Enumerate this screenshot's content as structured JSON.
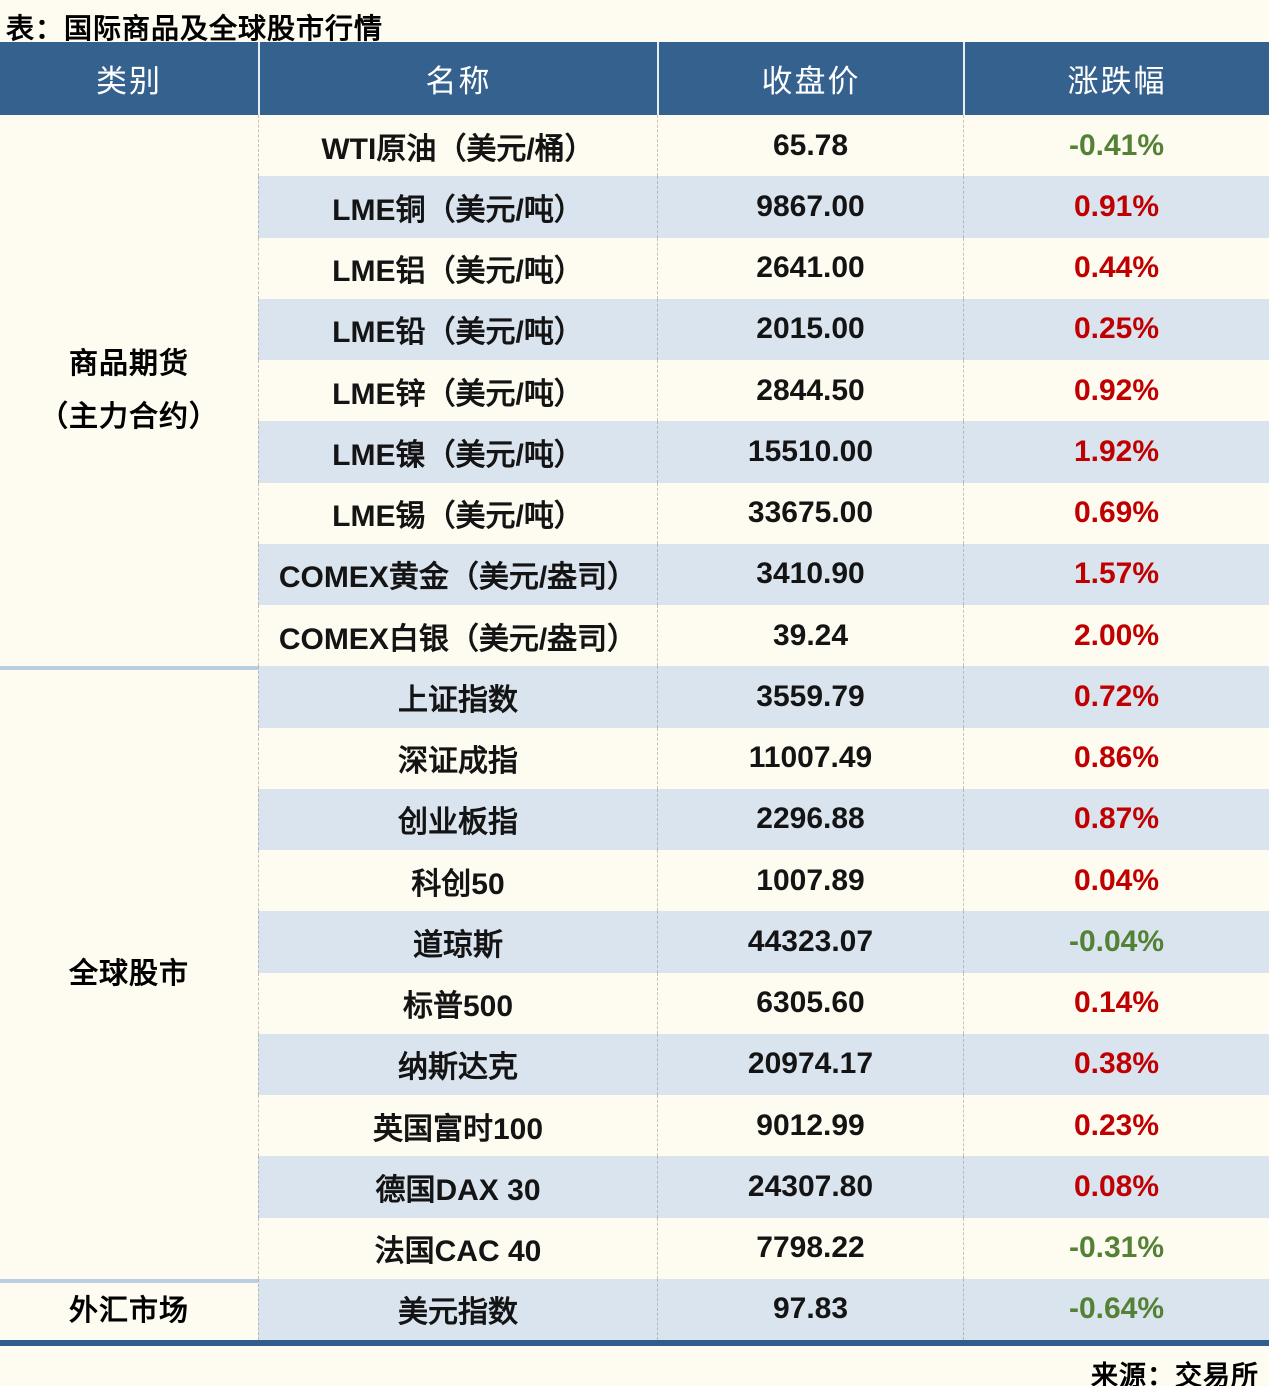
{
  "chart_data": {
    "type": "table",
    "title": "表：国际商品及全球股市行情",
    "columns": [
      "类别",
      "名称",
      "收盘价",
      "涨跌幅"
    ],
    "groups": [
      {
        "category": "商品期货（主力合约）",
        "category_lines": [
          "商品期货",
          "（主力合约）"
        ],
        "rows": [
          {
            "name": "WTI原油（美元/桶）",
            "close": "65.78",
            "change": "-0.41%"
          },
          {
            "name": "LME铜（美元/吨）",
            "close": "9867.00",
            "change": "0.91%"
          },
          {
            "name": "LME铝（美元/吨）",
            "close": "2641.00",
            "change": "0.44%"
          },
          {
            "name": "LME铅（美元/吨）",
            "close": "2015.00",
            "change": "0.25%"
          },
          {
            "name": "LME锌（美元/吨）",
            "close": "2844.50",
            "change": "0.92%"
          },
          {
            "name": "LME镍（美元/吨）",
            "close": "15510.00",
            "change": "1.92%"
          },
          {
            "name": "LME锡（美元/吨）",
            "close": "33675.00",
            "change": "0.69%"
          },
          {
            "name": "COMEX黄金（美元/盎司）",
            "close": "3410.90",
            "change": "1.57%"
          },
          {
            "name": "COMEX白银（美元/盎司）",
            "close": "39.24",
            "change": "2.00%"
          }
        ]
      },
      {
        "category": "全球股市",
        "category_lines": [
          "全球股市"
        ],
        "rows": [
          {
            "name": "上证指数",
            "close": "3559.79",
            "change": "0.72%"
          },
          {
            "name": "深证成指",
            "close": "11007.49",
            "change": "0.86%"
          },
          {
            "name": "创业板指",
            "close": "2296.88",
            "change": "0.87%"
          },
          {
            "name": "科创50",
            "close": "1007.89",
            "change": "0.04%"
          },
          {
            "name": "道琼斯",
            "close": "44323.07",
            "change": "-0.04%"
          },
          {
            "name": "标普500",
            "close": "6305.60",
            "change": "0.14%"
          },
          {
            "name": "纳斯达克",
            "close": "20974.17",
            "change": "0.38%"
          },
          {
            "name": "英国富时100",
            "close": "9012.99",
            "change": "0.23%"
          },
          {
            "name": "德国DAX 30",
            "close": "24307.80",
            "change": "0.08%"
          },
          {
            "name": "法国CAC 40",
            "close": "7798.22",
            "change": "-0.31%"
          }
        ]
      },
      {
        "category": "外汇市场",
        "category_lines": [
          "外汇市场"
        ],
        "rows": [
          {
            "name": "美元指数",
            "close": "97.83",
            "change": "-0.64%"
          }
        ]
      }
    ],
    "source": "来源：交易所",
    "legend": "positive change = red (up), negative change = green (down)"
  },
  "colors": {
    "header_bg": "#35618E",
    "header_text": "#FFFFFF",
    "stripe_blue": "#DAE4EF",
    "up_red": "#C00000",
    "down_green": "#538135",
    "bottom_border_blue": "#2F5D8C",
    "section_divider_blue": "#BACDE3",
    "page_cream": "#FEFCF1"
  }
}
